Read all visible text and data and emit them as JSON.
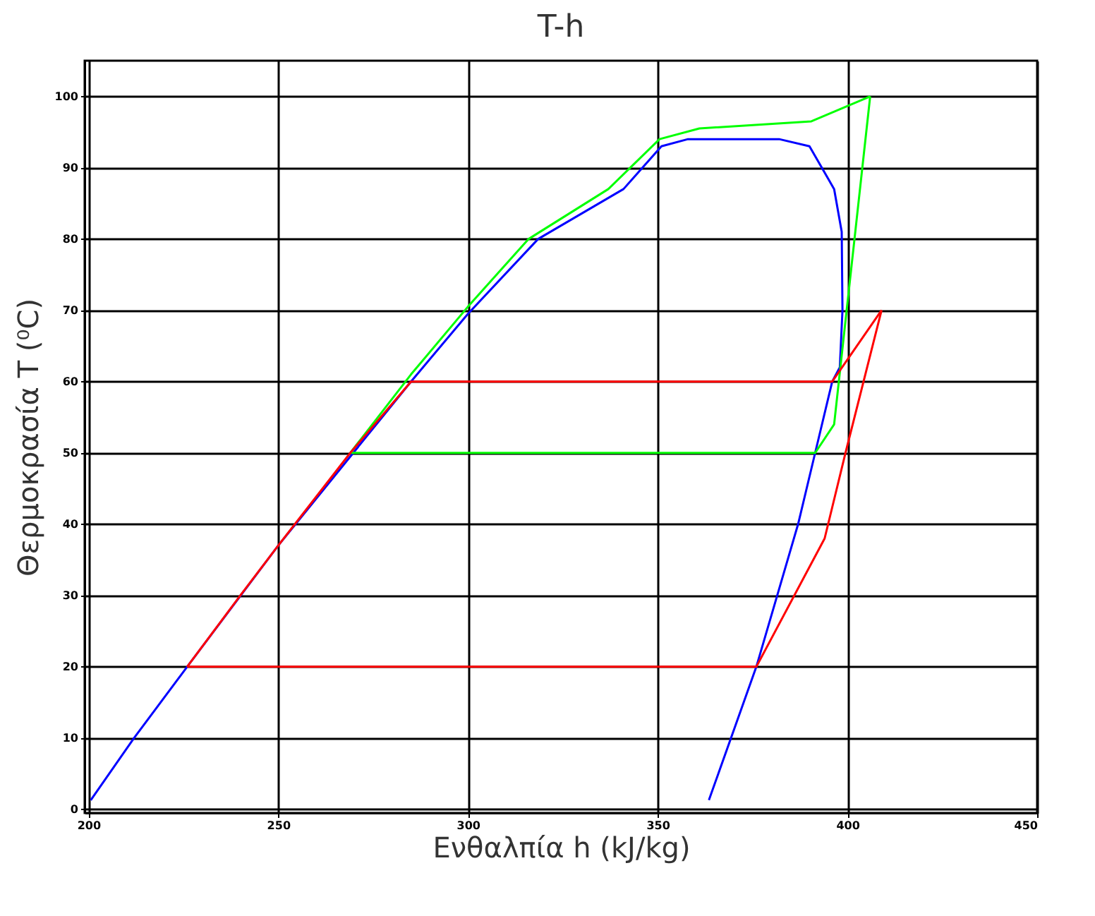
{
  "chart_data": {
    "type": "line",
    "title": "T-h",
    "xlabel": "Ενθαλπία h (kJ/kg)",
    "ylabel": "Θερμοκρασία T (⁰C)",
    "xlim": [
      199,
      450
    ],
    "ylim": [
      -0.5,
      105
    ],
    "xticks": [
      200,
      250,
      300,
      350,
      400,
      450
    ],
    "yticks": [
      0,
      10,
      20,
      30,
      40,
      50,
      60,
      70,
      80,
      90,
      100
    ],
    "grid": true,
    "marker": "none",
    "line_style": "solid",
    "series": [
      {
        "color": "#0000ff",
        "x": [
          200.6,
          212,
          226,
          250,
          285,
          300,
          318.5,
          341,
          351,
          358,
          382,
          390,
          396.5,
          398.5,
          398.7,
          398,
          396,
          391.5,
          387,
          381.5,
          376,
          363.5
        ],
        "values": [
          1.3,
          10,
          20,
          37,
          60,
          69.5,
          80,
          87,
          93,
          94,
          94,
          93,
          87,
          81,
          70,
          62,
          60,
          50,
          40,
          30,
          20,
          1.3
        ]
      },
      {
        "color": "#00ff00",
        "x": [
          269,
          285,
          300,
          316,
          337,
          350.5,
          361,
          390.5,
          406
        ],
        "values": [
          50,
          61,
          70.5,
          80,
          87,
          94,
          95.5,
          96.5,
          100
        ]
      },
      {
        "color": "#00ff00",
        "x": [
          406,
          396.5,
          391.5,
          269
        ],
        "values": [
          100,
          54,
          50,
          50
        ]
      },
      {
        "color": "#ff0000",
        "x": [
          226,
          240,
          250,
          269,
          285,
          396,
          409
        ],
        "values": [
          20,
          30,
          37,
          50,
          60,
          60,
          70
        ]
      },
      {
        "color": "#ff0000",
        "x": [
          409,
          399.5,
          394,
          376,
          226
        ],
        "values": [
          70,
          50,
          38,
          20,
          20
        ]
      }
    ]
  }
}
